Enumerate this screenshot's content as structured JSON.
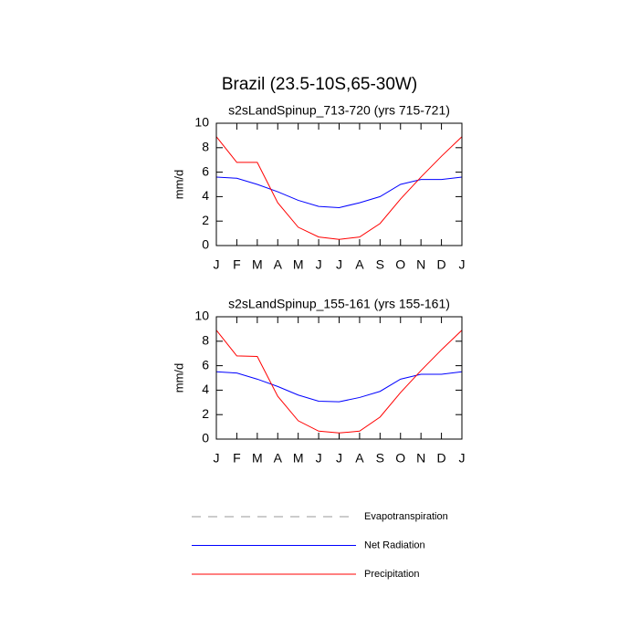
{
  "title": "Brazil (23.5-10S,65-30W)",
  "legend": {
    "position": "bottom",
    "entries": [
      {
        "name": "Evapotranspiration",
        "color": "#999999",
        "dash": true
      },
      {
        "name": "Net Radiation",
        "color": "#0000ff",
        "dash": false
      },
      {
        "name": "Precipitation",
        "color": "#ff0000",
        "dash": false
      }
    ]
  },
  "chart_data": [
    {
      "type": "line",
      "title": "s2sLandSpinup_713-720 (yrs 715-721)",
      "y_label": "mm/d",
      "categories": [
        "J",
        "F",
        "M",
        "A",
        "M",
        "J",
        "J",
        "A",
        "S",
        "O",
        "N",
        "D",
        "J"
      ],
      "ylim": [
        0,
        10
      ],
      "yticks": [
        0,
        2,
        4,
        6,
        8,
        10
      ],
      "series": [
        {
          "values": [
            null,
            null,
            null,
            null,
            null,
            null,
            null,
            null,
            null,
            null,
            null,
            null,
            null
          ]
        },
        {
          "values": [
            5.6,
            5.5,
            5.0,
            4.4,
            3.7,
            3.2,
            3.1,
            3.5,
            4.0,
            5.0,
            5.4,
            5.4,
            5.6
          ]
        },
        {
          "values": [
            8.9,
            6.8,
            6.8,
            3.5,
            1.5,
            0.7,
            0.5,
            0.7,
            1.8,
            3.8,
            5.6,
            7.3,
            8.9
          ]
        }
      ]
    },
    {
      "type": "line",
      "title": "s2sLandSpinup_155-161 (yrs 155-161)",
      "y_label": "mm/d",
      "categories": [
        "J",
        "F",
        "M",
        "A",
        "M",
        "J",
        "J",
        "A",
        "S",
        "O",
        "N",
        "D",
        "J"
      ],
      "ylim": [
        0,
        10
      ],
      "yticks": [
        0,
        2,
        4,
        6,
        8,
        10
      ],
      "series": [
        {
          "values": [
            null,
            null,
            null,
            null,
            null,
            null,
            null,
            null,
            null,
            null,
            null,
            null,
            null
          ]
        },
        {
          "values": [
            5.5,
            5.4,
            4.9,
            4.3,
            3.6,
            3.1,
            3.05,
            3.4,
            3.9,
            4.9,
            5.3,
            5.3,
            5.5
          ]
        },
        {
          "values": [
            8.9,
            6.8,
            6.75,
            3.5,
            1.5,
            0.65,
            0.5,
            0.65,
            1.8,
            3.8,
            5.6,
            7.3,
            8.9
          ]
        }
      ]
    }
  ]
}
